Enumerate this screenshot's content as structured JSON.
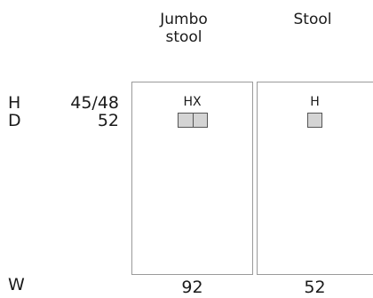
{
  "columns": [
    {
      "title_line1": "Jumbo",
      "title_line2": "stool",
      "code": "HX",
      "width": "92"
    },
    {
      "title_line1": "Stool",
      "title_line2": "",
      "code": "H",
      "width": "52"
    }
  ],
  "dimensions": {
    "height_label": "H",
    "height_value": "45/48",
    "depth_label": "D",
    "depth_value": "52",
    "width_label": "W"
  },
  "colors": {
    "swatch_fill": "#d4d4d4",
    "panel_border": "#9a9a9a"
  }
}
